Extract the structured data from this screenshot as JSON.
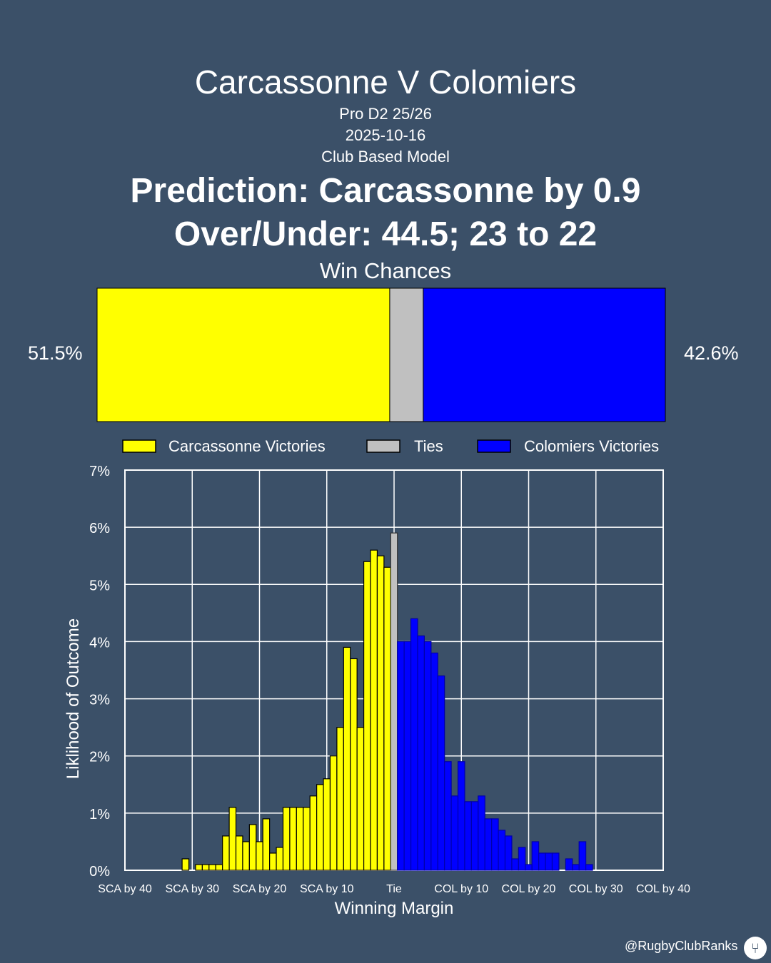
{
  "header": {
    "title": "Carcassonne V Colomiers",
    "competition": "Pro D2 25/26",
    "date": "2025-10-16",
    "model": "Club Based Model",
    "prediction": "Prediction: Carcassonne by 0.9",
    "over_under": "Over/Under: 44.5; 23 to 22"
  },
  "win_chances": {
    "title": "Win Chances",
    "home_pct": 51.5,
    "tie_pct": 5.9,
    "away_pct": 42.6,
    "home_label": "51.5%",
    "away_label": "42.6%"
  },
  "colors": {
    "home": "#ffff00",
    "tie": "#c0c0c0",
    "away": "#0000ff",
    "background": "#3b5068"
  },
  "chart_data": {
    "type": "bar",
    "xlabel": "Winning Margin",
    "ylabel": "Liklihood of Outcome",
    "ylim": [
      0,
      7
    ],
    "yticks": [
      "0%",
      "1%",
      "2%",
      "3%",
      "4%",
      "5%",
      "6%",
      "7%"
    ],
    "xticks": [
      "SCA by 40",
      "SCA by 30",
      "SCA by 20",
      "SCA by 10",
      "Tie",
      "COL by 10",
      "COL by 20",
      "COL by 30",
      "COL by 40"
    ],
    "xlim": [
      -40,
      40
    ],
    "grid": true,
    "legend": [
      "Carcassonne Victories",
      "Ties",
      "Colomiers Victories"
    ],
    "legend_position": "top",
    "series": [
      {
        "name": "Carcassonne Victories",
        "margins": [
          -31,
          -29,
          -28,
          -27,
          -26,
          -25,
          -24,
          -23,
          -22,
          -21,
          -20,
          -19,
          -18,
          -17,
          -16,
          -15,
          -14,
          -13,
          -12,
          -11,
          -10,
          -9,
          -8,
          -7,
          -6,
          -5,
          -4,
          -3,
          -2,
          -1
        ],
        "values": [
          0.2,
          0.1,
          0.1,
          0.1,
          0.1,
          0.6,
          1.1,
          0.6,
          0.5,
          0.8,
          0.5,
          0.9,
          0.3,
          0.4,
          1.1,
          1.1,
          1.1,
          1.1,
          1.3,
          1.5,
          1.6,
          2.0,
          2.5,
          3.9,
          3.7,
          2.5,
          5.4,
          5.6,
          5.5,
          5.3
        ]
      },
      {
        "name": "Ties",
        "margins": [
          0
        ],
        "values": [
          5.9
        ]
      },
      {
        "name": "Colomiers Victories",
        "margins": [
          1,
          2,
          3,
          4,
          5,
          6,
          7,
          8,
          9,
          10,
          11,
          12,
          13,
          14,
          15,
          16,
          17,
          18,
          19,
          20,
          21,
          22,
          23,
          24,
          25,
          26,
          27,
          28,
          29,
          30,
          31,
          32,
          33,
          34
        ],
        "values": [
          4.0,
          4.0,
          4.4,
          4.1,
          4.0,
          3.8,
          3.4,
          1.9,
          1.3,
          1.9,
          1.2,
          1.2,
          1.3,
          0.9,
          0.9,
          0.7,
          0.6,
          0.2,
          0.4,
          0.1,
          0.5,
          0.3,
          0.3,
          0.3,
          0.0,
          0.2,
          0.1,
          0.5,
          0.1,
          0.0,
          0.0,
          0.0,
          0.0,
          0.0
        ]
      }
    ]
  },
  "footer": {
    "handle": "@RugbyClubRanks"
  }
}
